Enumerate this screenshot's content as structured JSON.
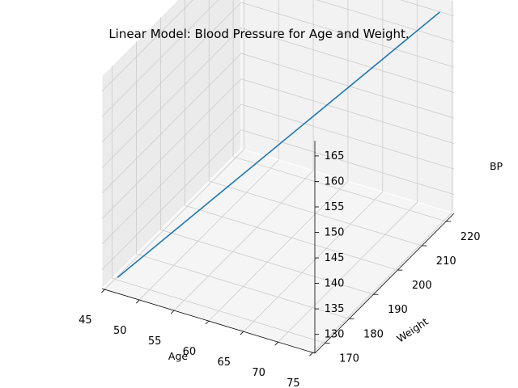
{
  "chart_data": {
    "type": "line3d",
    "title": "Linear Model: Blood Pressure for Age and Weight.",
    "xlabel": "Age",
    "ylabel": "Weight",
    "zlabel": "BP",
    "xlim": [
      44.6,
      75.3
    ],
    "ylim": [
      165.8,
      223.3
    ],
    "zlim": [
      126.3,
      168.0
    ],
    "x_ticks": [
      45,
      50,
      55,
      60,
      65,
      70,
      75
    ],
    "y_ticks": [
      170,
      180,
      190,
      200,
      210,
      220
    ],
    "z_ticks": [
      130,
      135,
      140,
      145,
      150,
      155,
      160,
      165
    ],
    "grid": true,
    "series": [
      {
        "color": "#1f77b4",
        "points": [
          {
            "x": 46.0,
            "y": 168.2,
            "z": 127.9
          },
          {
            "x": 74.0,
            "y": 221.1,
            "z": 166.3
          }
        ]
      }
    ]
  },
  "colors": {
    "line": "#1f77b4",
    "pane_left": "#ebebeb",
    "pane_back": "#f2f2f2",
    "pane_floor": "#f5f5f5",
    "grid": "#cccccc"
  }
}
